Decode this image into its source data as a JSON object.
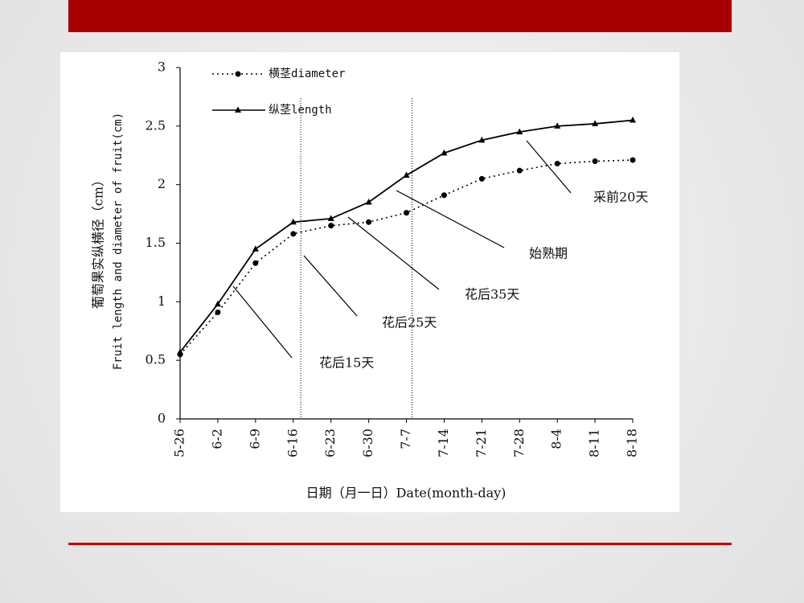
{
  "chart_data": {
    "type": "line",
    "categories": [
      "5-26",
      "6-2",
      "6-9",
      "6-16",
      "6-23",
      "6-30",
      "7-7",
      "7-14",
      "7-21",
      "7-28",
      "8-4",
      "8-11",
      "8-18"
    ],
    "series": [
      {
        "name": "横茎diameter",
        "color": "#000000",
        "values": [
          0.55,
          0.91,
          1.33,
          1.58,
          1.65,
          1.68,
          1.76,
          1.91,
          2.05,
          2.12,
          2.18,
          2.2,
          2.21
        ]
      },
      {
        "name": "纵茎length",
        "color": "#000000",
        "values": [
          0.57,
          0.98,
          1.45,
          1.68,
          1.71,
          1.85,
          2.08,
          2.27,
          2.38,
          2.45,
          2.5,
          2.52,
          2.55
        ]
      }
    ],
    "ylim": [
      0,
      3
    ],
    "yticks": [
      0,
      0.5,
      1,
      1.5,
      2,
      2.5,
      3
    ],
    "y_label": [
      "葡萄果实纵横径（cm）",
      "Fruit length and diameter of fruit(cm)"
    ],
    "x_label": "日期（月一日）Date(month-day)",
    "annotations": [
      "花后15天",
      "花后25天",
      "花后35天",
      "始熟期",
      "采前20天"
    ]
  }
}
